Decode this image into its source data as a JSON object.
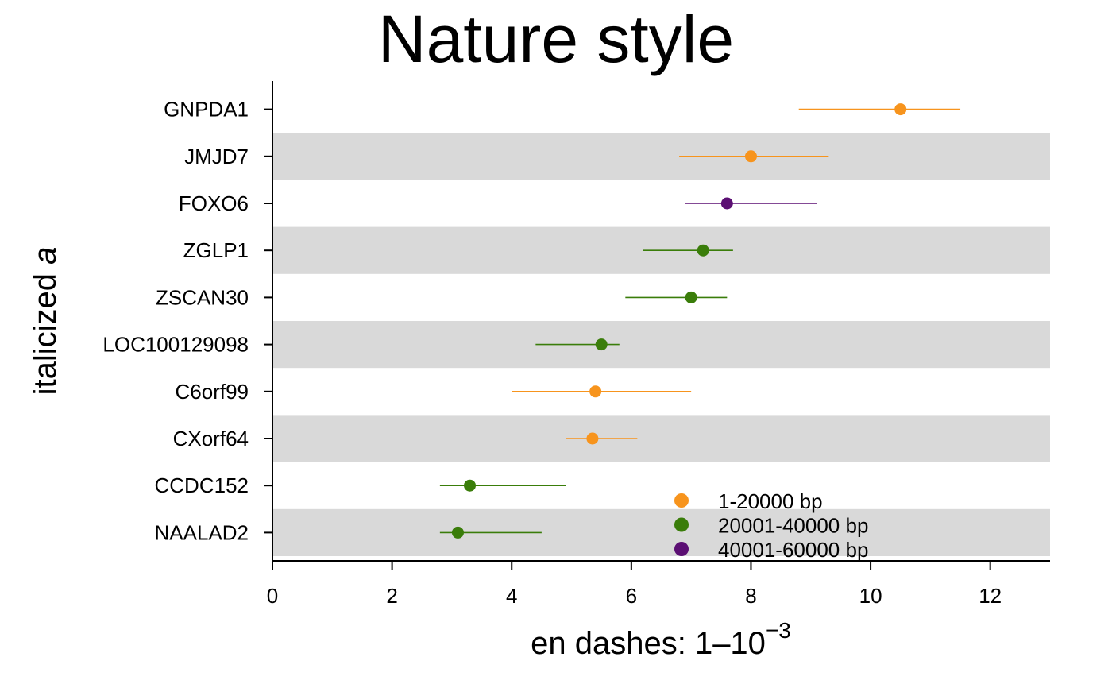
{
  "chart_data": {
    "type": "scatter",
    "title": "Nature style",
    "xlabel": "en dashes: 1–10",
    "xlabel_superscript": "−3",
    "ylabel_prefix": "italicized ",
    "ylabel_italic": "a",
    "xlim": [
      0,
      13
    ],
    "xticks": [
      0,
      2,
      4,
      6,
      8,
      10,
      12
    ],
    "row_banding": true,
    "legend_position": "lower-right",
    "categories": [
      "GNPDA1",
      "JMJD7",
      "FOXO6",
      "ZGLP1",
      "ZSCAN30",
      "LOC100129098",
      "C6orf99",
      "CXorf64",
      "CCDC152",
      "NAALAD2"
    ],
    "points": [
      {
        "label": "GNPDA1",
        "x": 10.5,
        "low": 8.8,
        "high": 11.5,
        "group": 0
      },
      {
        "label": "JMJD7",
        "x": 8.0,
        "low": 6.8,
        "high": 9.3,
        "group": 0
      },
      {
        "label": "FOXO6",
        "x": 7.6,
        "low": 6.9,
        "high": 9.1,
        "group": 2
      },
      {
        "label": "ZGLP1",
        "x": 7.2,
        "low": 6.2,
        "high": 7.7,
        "group": 1
      },
      {
        "label": "ZSCAN30",
        "x": 7.0,
        "low": 5.9,
        "high": 7.6,
        "group": 1
      },
      {
        "label": "LOC100129098",
        "x": 5.5,
        "low": 4.4,
        "high": 5.8,
        "group": 1
      },
      {
        "label": "C6orf99",
        "x": 5.4,
        "low": 4.0,
        "high": 7.0,
        "group": 0
      },
      {
        "label": "CXorf64",
        "x": 5.35,
        "low": 4.9,
        "high": 6.1,
        "group": 0
      },
      {
        "label": "CCDC152",
        "x": 3.3,
        "low": 2.8,
        "high": 4.9,
        "group": 1
      },
      {
        "label": "NAALAD2",
        "x": 3.1,
        "low": 2.8,
        "high": 4.5,
        "group": 1
      }
    ],
    "series": [
      {
        "name": "1-20000 bp",
        "color": "#f7941d"
      },
      {
        "name": "20001-40000 bp",
        "color": "#3a7d0a"
      },
      {
        "name": "40001-60000 bp",
        "color": "#5b0f73"
      }
    ],
    "band_color": "#d9d9d9"
  }
}
